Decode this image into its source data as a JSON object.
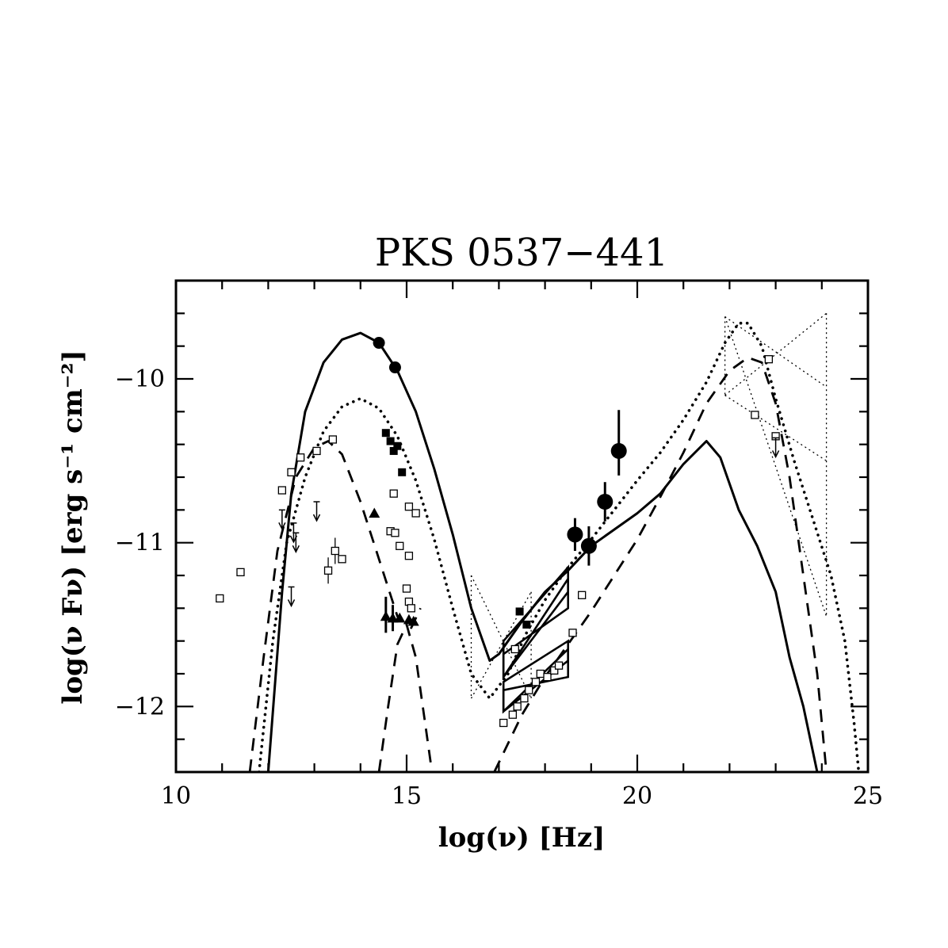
{
  "chart_data": {
    "type": "scatter",
    "title": "PKS 0537−441",
    "xlabel": "log(ν) [Hz]",
    "ylabel": "log(ν Fν) [erg s⁻¹ cm⁻²]",
    "xlim": [
      10,
      25
    ],
    "ylim": [
      -12.4,
      -9.4
    ],
    "x_ticks": [
      {
        "value": 10,
        "label": "10"
      },
      {
        "value": 15,
        "label": "15"
      },
      {
        "value": 20,
        "label": "20"
      },
      {
        "value": 25,
        "label": "25"
      }
    ],
    "y_ticks": [
      {
        "value": -10,
        "label": "−10"
      },
      {
        "value": -11,
        "label": "−11"
      },
      {
        "value": -12,
        "label": "−12"
      }
    ],
    "x_minor_step": 1,
    "y_minor_step": 0.2,
    "grid": false,
    "legend": "none",
    "curves": [
      {
        "style": "solid",
        "stroke": "#000000",
        "points": [
          [
            12.0,
            -12.4
          ],
          [
            12.3,
            -11.3
          ],
          [
            12.5,
            -10.7
          ],
          [
            12.8,
            -10.2
          ],
          [
            13.2,
            -9.9
          ],
          [
            13.6,
            -9.76
          ],
          [
            14.0,
            -9.72
          ],
          [
            14.4,
            -9.78
          ],
          [
            14.8,
            -9.95
          ],
          [
            15.2,
            -10.2
          ],
          [
            15.6,
            -10.55
          ],
          [
            16.0,
            -10.95
          ],
          [
            16.4,
            -11.4
          ],
          [
            16.8,
            -11.72
          ],
          [
            17.0,
            -11.68
          ],
          [
            17.5,
            -11.48
          ],
          [
            18.0,
            -11.3
          ],
          [
            18.5,
            -11.17
          ],
          [
            19.0,
            -11.02
          ],
          [
            19.5,
            -10.92
          ],
          [
            20.0,
            -10.82
          ],
          [
            20.5,
            -10.7
          ],
          [
            21.0,
            -10.52
          ],
          [
            21.5,
            -10.38
          ],
          [
            21.8,
            -10.48
          ],
          [
            22.2,
            -10.8
          ],
          [
            22.6,
            -11.02
          ],
          [
            23.0,
            -11.3
          ],
          [
            23.3,
            -11.7
          ],
          [
            23.6,
            -12.0
          ],
          [
            23.9,
            -12.4
          ]
        ]
      },
      {
        "style": "dotted",
        "stroke": "#000000",
        "points": [
          [
            11.8,
            -12.4
          ],
          [
            12.1,
            -11.6
          ],
          [
            12.4,
            -11.0
          ],
          [
            12.8,
            -10.6
          ],
          [
            13.2,
            -10.32
          ],
          [
            13.6,
            -10.17
          ],
          [
            14.0,
            -10.12
          ],
          [
            14.4,
            -10.18
          ],
          [
            14.8,
            -10.35
          ],
          [
            15.2,
            -10.62
          ],
          [
            15.6,
            -10.98
          ],
          [
            16.0,
            -11.4
          ],
          [
            16.4,
            -11.8
          ],
          [
            16.8,
            -11.95
          ],
          [
            17.2,
            -11.8
          ],
          [
            17.6,
            -11.55
          ],
          [
            18.0,
            -11.35
          ],
          [
            18.5,
            -11.15
          ],
          [
            19.0,
            -10.98
          ],
          [
            19.5,
            -10.8
          ],
          [
            20.0,
            -10.62
          ],
          [
            20.5,
            -10.45
          ],
          [
            21.0,
            -10.25
          ],
          [
            21.5,
            -10.02
          ],
          [
            21.9,
            -9.78
          ],
          [
            22.2,
            -9.66
          ],
          [
            22.4,
            -9.66
          ],
          [
            22.7,
            -9.8
          ],
          [
            23.0,
            -10.12
          ],
          [
            23.4,
            -10.5
          ],
          [
            23.8,
            -10.85
          ],
          [
            24.2,
            -11.2
          ],
          [
            24.5,
            -11.6
          ],
          [
            24.7,
            -12.1
          ],
          [
            24.8,
            -12.4
          ]
        ]
      },
      {
        "style": "dashed",
        "stroke": "#000000",
        "points": [
          [
            11.6,
            -12.4
          ],
          [
            11.9,
            -11.7
          ],
          [
            12.2,
            -11.05
          ],
          [
            12.6,
            -10.6
          ],
          [
            13.0,
            -10.42
          ],
          [
            13.3,
            -10.38
          ],
          [
            13.6,
            -10.46
          ],
          [
            14.0,
            -10.75
          ],
          [
            14.4,
            -11.1
          ],
          [
            14.8,
            -11.45
          ],
          [
            15.1,
            -11.52
          ],
          [
            15.3,
            -11.4
          ]
        ]
      },
      {
        "style": "dashed",
        "stroke": "#000000",
        "points": [
          [
            14.4,
            -12.4
          ],
          [
            14.6,
            -12.0
          ],
          [
            14.8,
            -11.62
          ],
          [
            15.0,
            -11.5
          ],
          [
            15.2,
            -11.7
          ],
          [
            15.4,
            -12.1
          ],
          [
            15.55,
            -12.4
          ]
        ]
      },
      {
        "style": "dashed",
        "stroke": "#000000",
        "points": [
          [
            16.9,
            -12.4
          ],
          [
            17.5,
            -12.05
          ],
          [
            18.0,
            -11.82
          ],
          [
            18.5,
            -11.62
          ],
          [
            19.0,
            -11.42
          ],
          [
            19.5,
            -11.2
          ],
          [
            20.0,
            -10.98
          ],
          [
            20.5,
            -10.72
          ],
          [
            21.0,
            -10.45
          ],
          [
            21.5,
            -10.15
          ],
          [
            22.0,
            -9.95
          ],
          [
            22.4,
            -9.87
          ],
          [
            22.7,
            -9.9
          ],
          [
            23.0,
            -10.15
          ],
          [
            23.3,
            -10.6
          ],
          [
            23.6,
            -11.2
          ],
          [
            23.9,
            -11.8
          ],
          [
            24.1,
            -12.4
          ]
        ]
      },
      {
        "style": "thin-dotted",
        "stroke": "#000000",
        "points": [
          [
            16.4,
            -11.2
          ],
          [
            16.4,
            -11.95
          ]
        ]
      },
      {
        "style": "thin-dotted",
        "stroke": "#000000",
        "points": [
          [
            16.4,
            -11.2
          ],
          [
            17.7,
            -11.95
          ]
        ]
      },
      {
        "style": "thin-dotted",
        "stroke": "#000000",
        "points": [
          [
            16.4,
            -11.95
          ],
          [
            17.7,
            -11.3
          ]
        ]
      },
      {
        "style": "thin-dotted",
        "stroke": "#000000",
        "points": [
          [
            17.7,
            -11.3
          ],
          [
            17.7,
            -11.95
          ]
        ]
      },
      {
        "style": "thin-dotted",
        "stroke": "#000000",
        "points": [
          [
            21.9,
            -9.62
          ],
          [
            21.9,
            -10.1
          ]
        ]
      },
      {
        "style": "thin-dotted",
        "stroke": "#000000",
        "points": [
          [
            21.9,
            -9.62
          ],
          [
            24.1,
            -11.45
          ]
        ]
      },
      {
        "style": "thin-dotted",
        "stroke": "#000000",
        "points": [
          [
            21.9,
            -10.1
          ],
          [
            24.1,
            -9.6
          ]
        ]
      },
      {
        "style": "thin-dotted",
        "stroke": "#000000",
        "points": [
          [
            21.9,
            -10.1
          ],
          [
            24.1,
            -10.5
          ]
        ]
      },
      {
        "style": "thin-dotted",
        "stroke": "#000000",
        "points": [
          [
            21.9,
            -9.62
          ],
          [
            24.1,
            -10.05
          ]
        ]
      },
      {
        "style": "thin-dotted",
        "stroke": "#000000",
        "points": [
          [
            24.1,
            -9.6
          ],
          [
            24.1,
            -11.45
          ]
        ]
      }
    ],
    "bowties": [
      {
        "points": [
          [
            17.1,
            -11.6
          ],
          [
            18.5,
            -11.15
          ],
          [
            18.5,
            -11.3
          ],
          [
            17.1,
            -11.82
          ]
        ]
      },
      {
        "points": [
          [
            17.1,
            -11.82
          ],
          [
            18.5,
            -11.22
          ],
          [
            18.5,
            -11.4
          ],
          [
            17.1,
            -11.68
          ]
        ]
      },
      {
        "points": [
          [
            17.1,
            -11.85
          ],
          [
            18.5,
            -11.6
          ],
          [
            18.5,
            -11.72
          ],
          [
            17.1,
            -12.03
          ]
        ]
      },
      {
        "points": [
          [
            17.1,
            -12.03
          ],
          [
            18.5,
            -11.65
          ],
          [
            18.5,
            -11.82
          ],
          [
            17.1,
            -11.9
          ]
        ]
      }
    ],
    "series": [
      {
        "marker": "filled-circle-small",
        "points": [
          {
            "x": 14.4,
            "y": -9.78
          },
          {
            "x": 14.75,
            "y": -9.93
          }
        ]
      },
      {
        "marker": "filled-circle-large",
        "points": [
          {
            "x": 18.65,
            "y": -10.95,
            "err": [
              0.1,
              0.1
            ]
          },
          {
            "x": 18.95,
            "y": -11.02,
            "err": [
              0.12,
              0.12
            ]
          },
          {
            "x": 19.3,
            "y": -10.75,
            "err": [
              0.12,
              0.12
            ]
          },
          {
            "x": 19.6,
            "y": -10.44,
            "err": [
              0.15,
              0.25
            ]
          }
        ]
      },
      {
        "marker": "filled-square",
        "points": [
          {
            "x": 14.55,
            "y": -10.33
          },
          {
            "x": 14.65,
            "y": -10.38
          },
          {
            "x": 14.72,
            "y": -10.44
          },
          {
            "x": 14.8,
            "y": -10.41
          },
          {
            "x": 14.9,
            "y": -10.57
          },
          {
            "x": 17.45,
            "y": -11.42
          },
          {
            "x": 17.6,
            "y": -11.5
          }
        ]
      },
      {
        "marker": "filled-triangle",
        "points": [
          {
            "x": 14.3,
            "y": -10.82
          },
          {
            "x": 14.55,
            "y": -11.45,
            "err": [
              0.1,
              0.12
            ]
          },
          {
            "x": 14.7,
            "y": -11.46,
            "err": [
              0.08,
              0.08
            ]
          },
          {
            "x": 14.85,
            "y": -11.46
          },
          {
            "x": 15.05,
            "y": -11.47
          },
          {
            "x": 15.15,
            "y": -11.48
          }
        ]
      },
      {
        "marker": "open-square",
        "points": [
          {
            "x": 10.95,
            "y": -11.34
          },
          {
            "x": 11.4,
            "y": -11.18
          },
          {
            "x": 12.3,
            "y": -10.68
          },
          {
            "x": 12.5,
            "y": -10.57
          },
          {
            "x": 12.7,
            "y": -10.48
          },
          {
            "x": 13.05,
            "y": -10.44
          },
          {
            "x": 13.4,
            "y": -10.37
          },
          {
            "x": 13.3,
            "y": -11.17,
            "err": [
              0.08,
              0.08
            ]
          },
          {
            "x": 13.45,
            "y": -11.05,
            "err": [
              0.08,
              0.08
            ]
          },
          {
            "x": 13.6,
            "y": -11.1
          },
          {
            "x": 14.65,
            "y": -10.93
          },
          {
            "x": 14.75,
            "y": -10.94
          },
          {
            "x": 14.85,
            "y": -11.02
          },
          {
            "x": 14.72,
            "y": -10.7
          },
          {
            "x": 15.05,
            "y": -10.78
          },
          {
            "x": 15.2,
            "y": -10.82
          },
          {
            "x": 15.05,
            "y": -11.08
          },
          {
            "x": 15.0,
            "y": -11.28
          },
          {
            "x": 15.05,
            "y": -11.36
          },
          {
            "x": 15.1,
            "y": -11.4
          },
          {
            "x": 17.1,
            "y": -12.1
          },
          {
            "x": 17.3,
            "y": -12.05
          },
          {
            "x": 17.4,
            "y": -12.0
          },
          {
            "x": 17.55,
            "y": -11.95
          },
          {
            "x": 17.65,
            "y": -11.9
          },
          {
            "x": 17.8,
            "y": -11.85
          },
          {
            "x": 17.9,
            "y": -11.8
          },
          {
            "x": 18.05,
            "y": -11.82
          },
          {
            "x": 18.2,
            "y": -11.78
          },
          {
            "x": 18.3,
            "y": -11.75
          },
          {
            "x": 18.6,
            "y": -11.55
          },
          {
            "x": 18.8,
            "y": -11.32
          },
          {
            "x": 17.35,
            "y": -11.65
          },
          {
            "x": 22.55,
            "y": -10.22
          },
          {
            "x": 22.85,
            "y": -9.88
          },
          {
            "x": 23.0,
            "y": -10.35
          }
        ]
      },
      {
        "marker": "upper-limit",
        "points": [
          {
            "x": 12.5,
            "y": -11.27
          },
          {
            "x": 13.05,
            "y": -10.75
          },
          {
            "x": 12.55,
            "y": -10.88
          },
          {
            "x": 12.6,
            "y": -10.94
          },
          {
            "x": 12.3,
            "y": -10.8
          },
          {
            "x": 23.0,
            "y": -10.36
          }
        ]
      }
    ]
  }
}
